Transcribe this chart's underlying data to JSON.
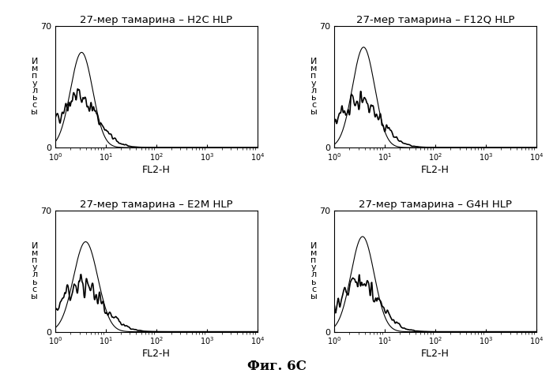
{
  "titles": [
    "27-мер тамарина – H2C HLP",
    "27-мер тамарина – F12Q HLP",
    "27-мер тамарина – E2M HLP",
    "27-мер тамарина – G4H HLP"
  ],
  "ylabel_chars": [
    "И",
    "м",
    "п",
    "у",
    "л",
    "ь",
    "с",
    "ы"
  ],
  "xlabel": "FL2-H",
  "ylim": [
    0,
    70
  ],
  "xlim_log": [
    1,
    10000
  ],
  "fig_caption": "Фиг. 6C",
  "background_color": "#ffffff",
  "line_color_thin": "#000000",
  "line_color_thick": "#000000",
  "title_fontsize": 9.5,
  "axis_fontsize": 8,
  "ylabel_fontsize": 8,
  "caption_fontsize": 12
}
